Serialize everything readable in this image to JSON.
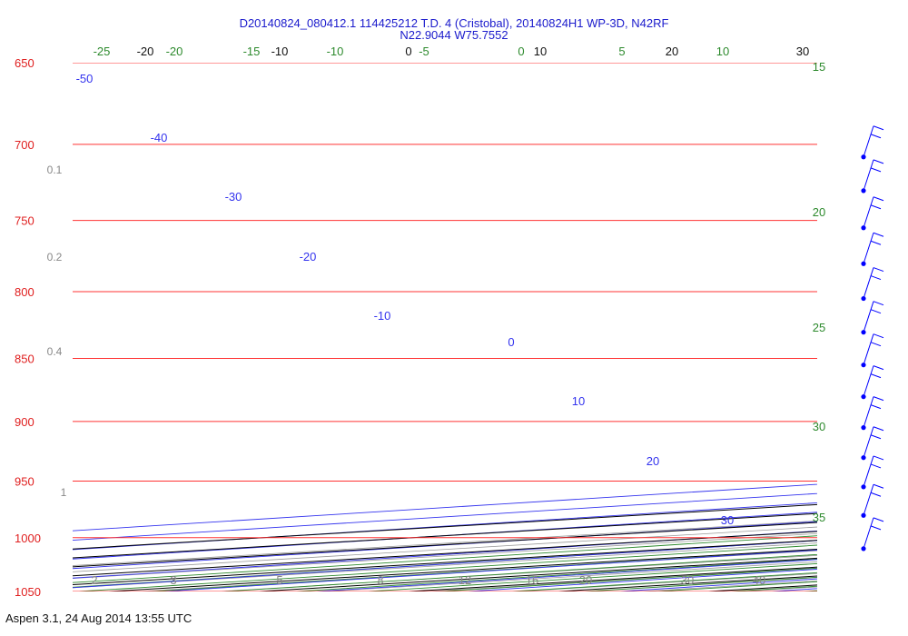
{
  "header": {
    "line1": "D20140824_080412.1 114425212 T.D. 4 (Cristobal), 20140824H1 WP-3D, N42RF",
    "line2": "N22.9044 W75.7552"
  },
  "footer": {
    "text": "Aspen 3.1, 24 Aug 2014  13:55 UTC"
  },
  "chart_data": {
    "type": "line",
    "chart_kind": "Skew-T log-P diagram",
    "pressure_axis": {
      "units": "hPa",
      "scale": "log",
      "ticks": [
        650,
        700,
        750,
        800,
        850,
        900,
        950,
        1000,
        1050
      ],
      "range": [
        650,
        1050
      ]
    },
    "temperature_isotherms": [
      -20,
      -10,
      0,
      10,
      20,
      30
    ],
    "isotherm_labels_top": [
      "-20",
      "-10",
      "0",
      "10",
      "20",
      "30"
    ],
    "isotherm_labels_bottom": [
      "30",
      "40"
    ],
    "dry_adiabats": [
      -50,
      -40,
      -30,
      -20,
      -10,
      0,
      10,
      20,
      30
    ],
    "moist_adiabats": [
      -25,
      -20,
      -15,
      -10,
      -5,
      0,
      5,
      10,
      15,
      20,
      25,
      30,
      35
    ],
    "moist_adiabat_labels_top": [
      "-25",
      "-20",
      "-15",
      "-10",
      "-5",
      "0",
      "5",
      "10"
    ],
    "moist_adiabat_labels_right": [
      "15",
      "20",
      "25",
      "30",
      "35"
    ],
    "mixing_ratio_labels_bottom": [
      "2",
      "3",
      "5",
      "8",
      "12",
      "16",
      "20",
      "30",
      "40"
    ],
    "mixing_ratio_labels_left": [
      "0.1",
      "0.2",
      "0.4",
      "1"
    ],
    "series": [
      {
        "name": "Temperature",
        "color": "#ff0000",
        "points": [
          {
            "p": 1010,
            "t": 21.6
          },
          {
            "p": 1000,
            "t": 21.6
          },
          {
            "p": 990,
            "t": 21.7
          },
          {
            "p": 975,
            "t": 22.0
          },
          {
            "p": 960,
            "t": 22.2
          },
          {
            "p": 950,
            "t": 22.4
          },
          {
            "p": 935,
            "t": 22.3
          },
          {
            "p": 920,
            "t": 22.3
          },
          {
            "p": 905,
            "t": 22.3
          },
          {
            "p": 890,
            "t": 22.4
          },
          {
            "p": 875,
            "t": 22.4
          },
          {
            "p": 865,
            "t": 22.4
          },
          {
            "p": 855,
            "t": 22.7
          },
          {
            "p": 845,
            "t": 22.8
          },
          {
            "p": 835,
            "t": 23.2
          }
        ]
      },
      {
        "name": "Dewpoint",
        "color": "#0000ff",
        "points": [
          {
            "p": 1010,
            "t": 15.4
          },
          {
            "p": 1005,
            "t": 16.2
          },
          {
            "p": 995,
            "t": 16.0
          },
          {
            "p": 985,
            "t": 16.6
          },
          {
            "p": 975,
            "t": 16.4
          },
          {
            "p": 965,
            "t": 17.0
          },
          {
            "p": 955,
            "t": 16.6
          },
          {
            "p": 945,
            "t": 17.0
          },
          {
            "p": 935,
            "t": 17.1
          },
          {
            "p": 925,
            "t": 17.0
          },
          {
            "p": 915,
            "t": 17.1
          },
          {
            "p": 905,
            "t": 17.2
          },
          {
            "p": 890,
            "t": 17.1
          },
          {
            "p": 875,
            "t": 16.9
          },
          {
            "p": 865,
            "t": 16.5
          },
          {
            "p": 855,
            "t": 15.9
          },
          {
            "p": 845,
            "t": 16.0
          },
          {
            "p": 838,
            "t": 16.3
          },
          {
            "p": 835,
            "t": 17.4
          },
          {
            "p": 832,
            "t": 17.7
          },
          {
            "p": 826,
            "t": 17.7
          },
          {
            "p": 815,
            "t": 17.2
          },
          {
            "p": 805,
            "t": 17.0
          },
          {
            "p": 795,
            "t": 17.0
          },
          {
            "p": 788,
            "t": 16.8
          },
          {
            "p": 784,
            "t": 16.1
          },
          {
            "p": 778,
            "t": 15.6
          },
          {
            "p": 773,
            "t": 16.1
          },
          {
            "p": 768,
            "t": 14.8
          },
          {
            "p": 762,
            "t": 14.3
          },
          {
            "p": 758,
            "t": 14.4
          },
          {
            "p": 756,
            "t": 14.8
          }
        ]
      }
    ],
    "wind_barbs": [
      {
        "p": 708,
        "kt": 20
      },
      {
        "p": 730,
        "kt": 20
      },
      {
        "p": 755,
        "kt": 20
      },
      {
        "p": 780,
        "kt": 20
      },
      {
        "p": 805,
        "kt": 20
      },
      {
        "p": 830,
        "kt": 20
      },
      {
        "p": 855,
        "kt": 20
      },
      {
        "p": 880,
        "kt": 20
      },
      {
        "p": 905,
        "kt": 20
      },
      {
        "p": 930,
        "kt": 20
      },
      {
        "p": 955,
        "kt": 20
      },
      {
        "p": 980,
        "kt": 20
      },
      {
        "p": 1010,
        "kt": 20
      }
    ],
    "colors": {
      "isobar": "#ff3333",
      "isotherm": "#000000",
      "dry_adiabat": "#3333ee",
      "moist_adiabat": "#2d8a2d",
      "mixing_ratio": "#999999",
      "pressure_label": "#e02020",
      "title": "#1a1acc"
    }
  }
}
